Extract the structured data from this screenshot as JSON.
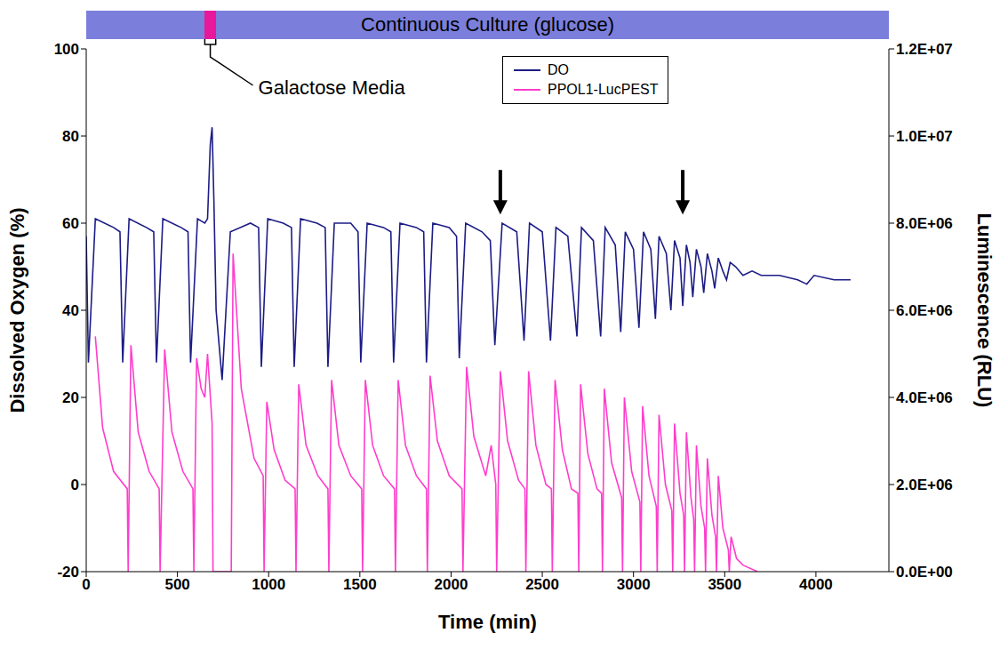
{
  "chart_data": {
    "type": "line",
    "xlabel": "Time (min)",
    "ylabel": "Dissolved Oxygen (%)",
    "y2label": "Luminescence (RLU)",
    "xlim": [
      0,
      4400
    ],
    "xticks": [
      0,
      500,
      1000,
      1500,
      2000,
      2500,
      3000,
      3500,
      4000
    ],
    "ylim": [
      -20,
      100
    ],
    "yticks": [
      -20,
      0,
      20,
      40,
      60,
      80,
      100
    ],
    "y2lim": [
      0,
      12000000
    ],
    "y2ticks": [
      {
        "value": 0,
        "label": "0.0E+00"
      },
      {
        "value": 2000000,
        "label": "2.0E+06"
      },
      {
        "value": 4000000,
        "label": "4.0E+06"
      },
      {
        "value": 6000000,
        "label": "6.0E+06"
      },
      {
        "value": 8000000,
        "label": "8.0E+06"
      },
      {
        "value": 10000000,
        "label": "1.0E+07"
      },
      {
        "value": 12000000,
        "label": "1.2E+07"
      }
    ],
    "legend": "top",
    "series": [
      {
        "name": "DO",
        "color": "#1c1c86",
        "x": [
          0,
          12,
          50,
          150,
          185,
          200,
          235,
          330,
          370,
          385,
          420,
          520,
          558,
          572,
          610,
          650,
          665,
          680,
          690,
          700,
          712,
          745,
          790,
          900,
          945,
          960,
          995,
          1080,
          1125,
          1140,
          1175,
          1265,
          1310,
          1325,
          1360,
          1450,
          1490,
          1505,
          1540,
          1630,
          1670,
          1685,
          1720,
          1810,
          1850,
          1865,
          1900,
          1990,
          2030,
          2045,
          2080,
          2170,
          2215,
          2240,
          2280,
          2360,
          2400,
          2430,
          2500,
          2545,
          2575,
          2640,
          2690,
          2715,
          2780,
          2820,
          2845,
          2900,
          2930,
          2955,
          3000,
          3030,
          3055,
          3095,
          3120,
          3140,
          3180,
          3205,
          3225,
          3255,
          3270,
          3290,
          3310,
          3325,
          3345,
          3370,
          3385,
          3405,
          3430,
          3445,
          3465,
          3490,
          3510,
          3530,
          3560,
          3600,
          3650,
          3700,
          3800,
          3900,
          3950,
          3990,
          4100,
          4190
        ],
        "values": [
          57,
          28,
          61,
          59,
          58,
          28,
          61,
          59,
          58,
          28,
          61,
          59,
          58,
          28,
          61,
          60,
          61,
          78,
          82,
          65,
          40,
          24,
          58,
          60,
          59,
          27,
          61,
          60,
          59,
          27,
          61,
          60,
          59,
          27,
          60,
          60,
          58,
          28,
          60,
          59,
          58,
          28,
          60,
          59,
          58,
          28,
          60,
          59,
          57,
          29,
          60,
          58,
          56,
          32,
          60,
          58,
          33,
          60,
          58,
          33,
          59,
          57,
          34,
          59,
          56,
          34,
          59,
          55,
          35,
          58,
          54,
          36,
          58,
          54,
          38,
          57,
          53,
          40,
          56,
          52,
          41,
          55,
          51,
          43,
          54,
          50,
          44,
          53,
          49,
          45,
          52,
          49,
          47,
          51,
          50,
          48,
          49,
          48,
          48,
          47,
          46,
          48,
          47,
          47
        ]
      },
      {
        "name": "PPOL1-LucPEST",
        "color": "#ff3dcc",
        "axis": "y2",
        "x": [
          50,
          90,
          150,
          225,
          230,
          245,
          285,
          345,
          400,
          405,
          430,
          470,
          530,
          585,
          590,
          605,
          630,
          650,
          665,
          690,
          695,
          795,
          805,
          850,
          920,
          970,
          975,
          990,
          1030,
          1090,
          1145,
          1150,
          1165,
          1205,
          1270,
          1325,
          1330,
          1345,
          1385,
          1450,
          1510,
          1515,
          1530,
          1570,
          1630,
          1690,
          1695,
          1710,
          1750,
          1810,
          1865,
          1870,
          1885,
          1925,
          1990,
          2060,
          2065,
          2085,
          2125,
          2190,
          2220,
          2245,
          2250,
          2270,
          2310,
          2370,
          2405,
          2410,
          2425,
          2465,
          2520,
          2550,
          2555,
          2570,
          2610,
          2660,
          2695,
          2700,
          2710,
          2750,
          2800,
          2825,
          2830,
          2840,
          2880,
          2935,
          2940,
          2950,
          2990,
          3035,
          3040,
          3050,
          3085,
          3125,
          3130,
          3140,
          3175,
          3210,
          3215,
          3225,
          3255,
          3275,
          3280,
          3290,
          3315,
          3330,
          3335,
          3345,
          3370,
          3390,
          3395,
          3405,
          3430,
          3450,
          3455,
          3465,
          3490,
          3520,
          3525,
          3535,
          3565,
          3600,
          3680
        ],
        "values": [
          5400000,
          3300000,
          2300000,
          1900000,
          0,
          5200000,
          3200000,
          2300000,
          1900000,
          0,
          5100000,
          3200000,
          2300000,
          1900000,
          0,
          4900000,
          4200000,
          4000000,
          5000000,
          3400000,
          0,
          0,
          7300000,
          4200000,
          2600000,
          2200000,
          0,
          3900000,
          2800000,
          2100000,
          1900000,
          0,
          4300000,
          2900000,
          2200000,
          1900000,
          0,
          4400000,
          2900000,
          2200000,
          1900000,
          0,
          4400000,
          2900000,
          2200000,
          1900000,
          0,
          4400000,
          2900000,
          2200000,
          1900000,
          0,
          4500000,
          3000000,
          2200000,
          1900000,
          0,
          4700000,
          3100000,
          2200000,
          2900000,
          2000000,
          0,
          4600000,
          3000000,
          2100000,
          1900000,
          0,
          4600000,
          2900000,
          2000000,
          1900000,
          0,
          4400000,
          2800000,
          1900000,
          1800000,
          0,
          4300000,
          2700000,
          1900000,
          1800000,
          0,
          4200000,
          2500000,
          1700000,
          0,
          4000000,
          2300000,
          1600000,
          0,
          3800000,
          2200000,
          1500000,
          0,
          3600000,
          2000000,
          1400000,
          0,
          3400000,
          1800000,
          1300000,
          0,
          3200000,
          1700000,
          1200000,
          0,
          2900000,
          1500000,
          1000000,
          0,
          2600000,
          1300000,
          800000,
          0,
          2200000,
          1000000,
          500000,
          0,
          800000,
          300000,
          150000,
          0
        ]
      }
    ],
    "annotations": [
      {
        "text": "Continuous Culture (glucose)",
        "x": [
          0,
          4400
        ]
      },
      {
        "text": "Galactose Media",
        "x": [
          650,
          710
        ]
      }
    ],
    "arrows": [
      {
        "x": 2270,
        "y": 62
      },
      {
        "x": 3270,
        "y": 62
      }
    ]
  }
}
